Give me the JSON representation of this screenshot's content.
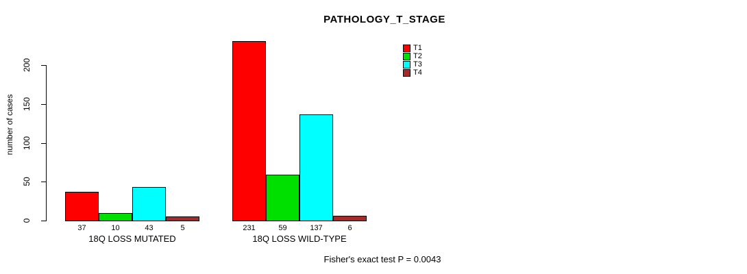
{
  "title": "PATHOLOGY_T_STAGE",
  "ylabel": "number of cases",
  "footer": "Fisher's exact test P = 0.0043",
  "legend": {
    "items": [
      {
        "label": "T1",
        "color": "#FF0000"
      },
      {
        "label": "T2",
        "color": "#00E000"
      },
      {
        "label": "T3",
        "color": "#00FFFF"
      },
      {
        "label": "T4",
        "color": "#A52A2A"
      }
    ]
  },
  "chart_data": {
    "type": "bar",
    "title": "PATHOLOGY_T_STAGE",
    "xlabel": "",
    "ylabel": "number of cases",
    "categories": [
      "18Q LOSS MUTATED",
      "18Q LOSS WILD-TYPE"
    ],
    "series": [
      {
        "name": "T1",
        "color": "#FF0000",
        "values": [
          37,
          231
        ]
      },
      {
        "name": "T2",
        "color": "#00E000",
        "values": [
          10,
          59
        ]
      },
      {
        "name": "T3",
        "color": "#00FFFF",
        "values": [
          43,
          137
        ]
      },
      {
        "name": "T4",
        "color": "#A52A2A",
        "values": [
          5,
          6
        ]
      }
    ],
    "groups": [
      {
        "label": "18Q LOSS MUTATED",
        "values": [
          37,
          10,
          43,
          5
        ]
      },
      {
        "label": "18Q LOSS WILD-TYPE",
        "values": [
          231,
          59,
          137,
          6
        ]
      }
    ],
    "yticks": [
      0,
      50,
      100,
      150,
      200
    ],
    "ylim": [
      0,
      235
    ],
    "grid": false,
    "legend_position": "top-right",
    "annotation": "Fisher's exact test P = 0.0043"
  }
}
